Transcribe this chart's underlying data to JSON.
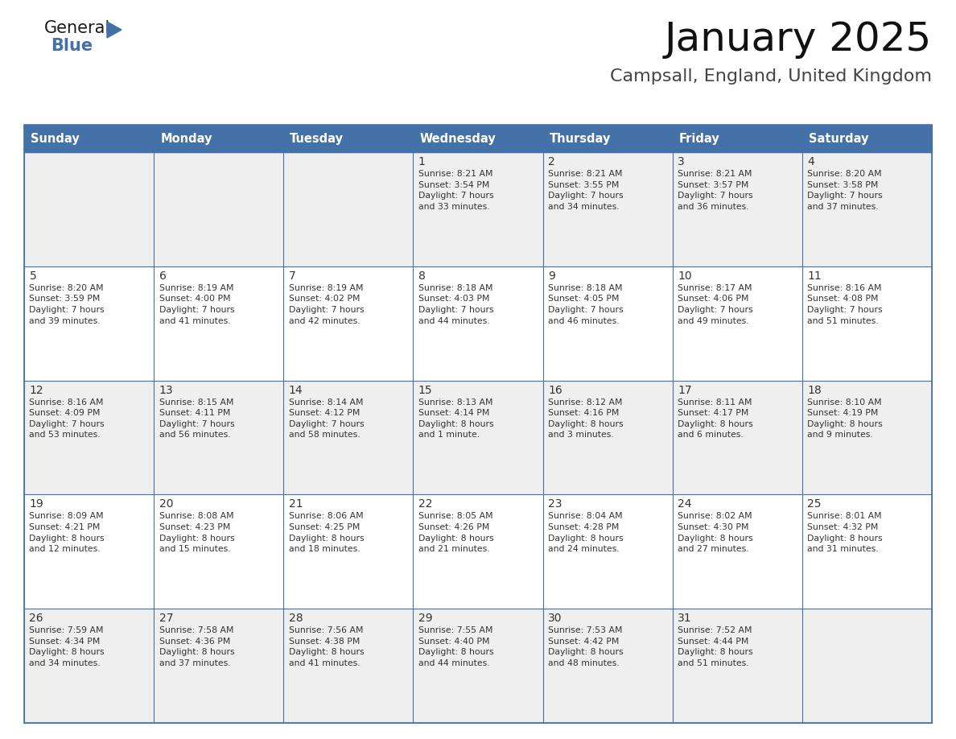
{
  "title": "January 2025",
  "subtitle": "Campsall, England, United Kingdom",
  "header_color": "#4472a8",
  "header_text_color": "#ffffff",
  "cell_bg_even": "#efefef",
  "cell_bg_odd": "#ffffff",
  "border_color": "#4472a8",
  "text_color": "#333333",
  "days_of_week": [
    "Sunday",
    "Monday",
    "Tuesday",
    "Wednesday",
    "Thursday",
    "Friday",
    "Saturday"
  ],
  "weeks": [
    [
      {
        "day": "",
        "info": ""
      },
      {
        "day": "",
        "info": ""
      },
      {
        "day": "",
        "info": ""
      },
      {
        "day": "1",
        "info": "Sunrise: 8:21 AM\nSunset: 3:54 PM\nDaylight: 7 hours\nand 33 minutes."
      },
      {
        "day": "2",
        "info": "Sunrise: 8:21 AM\nSunset: 3:55 PM\nDaylight: 7 hours\nand 34 minutes."
      },
      {
        "day": "3",
        "info": "Sunrise: 8:21 AM\nSunset: 3:57 PM\nDaylight: 7 hours\nand 36 minutes."
      },
      {
        "day": "4",
        "info": "Sunrise: 8:20 AM\nSunset: 3:58 PM\nDaylight: 7 hours\nand 37 minutes."
      }
    ],
    [
      {
        "day": "5",
        "info": "Sunrise: 8:20 AM\nSunset: 3:59 PM\nDaylight: 7 hours\nand 39 minutes."
      },
      {
        "day": "6",
        "info": "Sunrise: 8:19 AM\nSunset: 4:00 PM\nDaylight: 7 hours\nand 41 minutes."
      },
      {
        "day": "7",
        "info": "Sunrise: 8:19 AM\nSunset: 4:02 PM\nDaylight: 7 hours\nand 42 minutes."
      },
      {
        "day": "8",
        "info": "Sunrise: 8:18 AM\nSunset: 4:03 PM\nDaylight: 7 hours\nand 44 minutes."
      },
      {
        "day": "9",
        "info": "Sunrise: 8:18 AM\nSunset: 4:05 PM\nDaylight: 7 hours\nand 46 minutes."
      },
      {
        "day": "10",
        "info": "Sunrise: 8:17 AM\nSunset: 4:06 PM\nDaylight: 7 hours\nand 49 minutes."
      },
      {
        "day": "11",
        "info": "Sunrise: 8:16 AM\nSunset: 4:08 PM\nDaylight: 7 hours\nand 51 minutes."
      }
    ],
    [
      {
        "day": "12",
        "info": "Sunrise: 8:16 AM\nSunset: 4:09 PM\nDaylight: 7 hours\nand 53 minutes."
      },
      {
        "day": "13",
        "info": "Sunrise: 8:15 AM\nSunset: 4:11 PM\nDaylight: 7 hours\nand 56 minutes."
      },
      {
        "day": "14",
        "info": "Sunrise: 8:14 AM\nSunset: 4:12 PM\nDaylight: 7 hours\nand 58 minutes."
      },
      {
        "day": "15",
        "info": "Sunrise: 8:13 AM\nSunset: 4:14 PM\nDaylight: 8 hours\nand 1 minute."
      },
      {
        "day": "16",
        "info": "Sunrise: 8:12 AM\nSunset: 4:16 PM\nDaylight: 8 hours\nand 3 minutes."
      },
      {
        "day": "17",
        "info": "Sunrise: 8:11 AM\nSunset: 4:17 PM\nDaylight: 8 hours\nand 6 minutes."
      },
      {
        "day": "18",
        "info": "Sunrise: 8:10 AM\nSunset: 4:19 PM\nDaylight: 8 hours\nand 9 minutes."
      }
    ],
    [
      {
        "day": "19",
        "info": "Sunrise: 8:09 AM\nSunset: 4:21 PM\nDaylight: 8 hours\nand 12 minutes."
      },
      {
        "day": "20",
        "info": "Sunrise: 8:08 AM\nSunset: 4:23 PM\nDaylight: 8 hours\nand 15 minutes."
      },
      {
        "day": "21",
        "info": "Sunrise: 8:06 AM\nSunset: 4:25 PM\nDaylight: 8 hours\nand 18 minutes."
      },
      {
        "day": "22",
        "info": "Sunrise: 8:05 AM\nSunset: 4:26 PM\nDaylight: 8 hours\nand 21 minutes."
      },
      {
        "day": "23",
        "info": "Sunrise: 8:04 AM\nSunset: 4:28 PM\nDaylight: 8 hours\nand 24 minutes."
      },
      {
        "day": "24",
        "info": "Sunrise: 8:02 AM\nSunset: 4:30 PM\nDaylight: 8 hours\nand 27 minutes."
      },
      {
        "day": "25",
        "info": "Sunrise: 8:01 AM\nSunset: 4:32 PM\nDaylight: 8 hours\nand 31 minutes."
      }
    ],
    [
      {
        "day": "26",
        "info": "Sunrise: 7:59 AM\nSunset: 4:34 PM\nDaylight: 8 hours\nand 34 minutes."
      },
      {
        "day": "27",
        "info": "Sunrise: 7:58 AM\nSunset: 4:36 PM\nDaylight: 8 hours\nand 37 minutes."
      },
      {
        "day": "28",
        "info": "Sunrise: 7:56 AM\nSunset: 4:38 PM\nDaylight: 8 hours\nand 41 minutes."
      },
      {
        "day": "29",
        "info": "Sunrise: 7:55 AM\nSunset: 4:40 PM\nDaylight: 8 hours\nand 44 minutes."
      },
      {
        "day": "30",
        "info": "Sunrise: 7:53 AM\nSunset: 4:42 PM\nDaylight: 8 hours\nand 48 minutes."
      },
      {
        "day": "31",
        "info": "Sunrise: 7:52 AM\nSunset: 4:44 PM\nDaylight: 8 hours\nand 51 minutes."
      },
      {
        "day": "",
        "info": ""
      }
    ]
  ],
  "logo_text_general": "General",
  "logo_text_blue": "Blue",
  "logo_color_general": "#1a1a1a",
  "logo_color_blue": "#4472a8",
  "fig_width": 11.88,
  "fig_height": 9.18,
  "dpi": 100
}
